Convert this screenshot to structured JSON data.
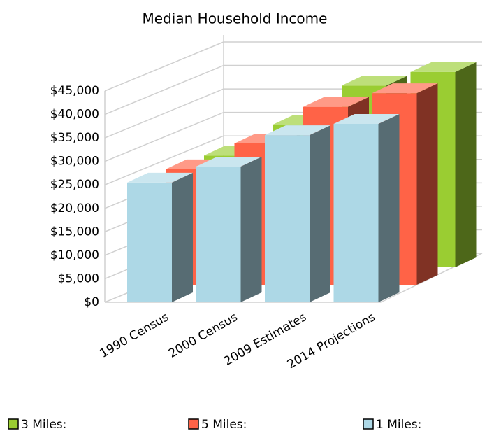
{
  "chart_data": {
    "type": "bar3d",
    "title": "Median Household Income",
    "categories": [
      "1990 Census",
      "2000 Census",
      "2009 Estimates",
      "2014 Projections"
    ],
    "series": [
      {
        "name": "3 Miles:",
        "color": "#9acd32",
        "values": [
          23800,
          30400,
          38700,
          41600
        ]
      },
      {
        "name": "5 Miles:",
        "color": "#ff6347",
        "values": [
          24600,
          30100,
          37900,
          40800
        ]
      },
      {
        "name": "1 Miles:",
        "color": "#add8e6",
        "values": [
          25500,
          28900,
          35600,
          38000
        ]
      }
    ],
    "ylim": [
      0,
      45000
    ],
    "yticks": [
      {
        "value": 0,
        "label": "$0"
      },
      {
        "value": 5000,
        "label": "$5,000"
      },
      {
        "value": 10000,
        "label": "$10,000"
      },
      {
        "value": 15000,
        "label": "$15,000"
      },
      {
        "value": 20000,
        "label": "$20,000"
      },
      {
        "value": 25000,
        "label": "$25,000"
      },
      {
        "value": 30000,
        "label": "$30,000"
      },
      {
        "value": 35000,
        "label": "$35,000"
      },
      {
        "value": 40000,
        "label": "$40,000"
      },
      {
        "value": 45000,
        "label": "$45,000"
      }
    ],
    "grid": true
  }
}
